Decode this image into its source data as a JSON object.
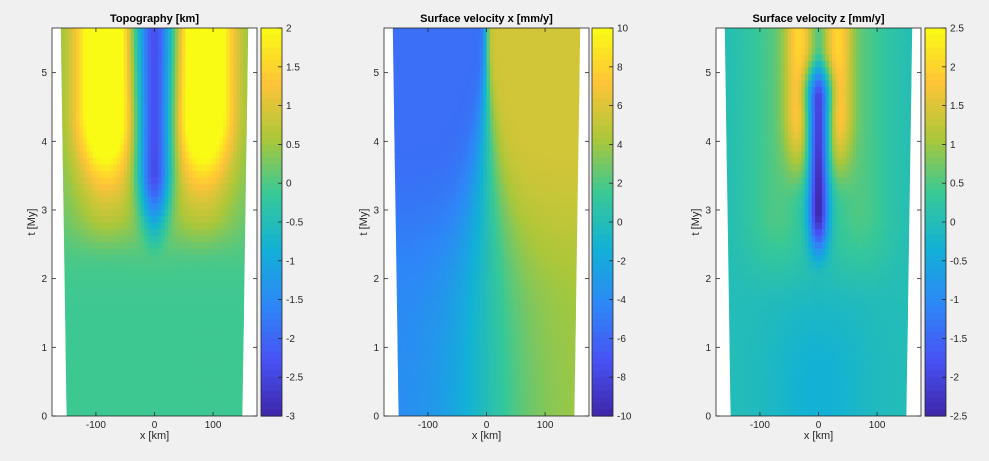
{
  "chart_data": [
    {
      "type": "heatmap",
      "title": "Topography [km]",
      "xlabel": "x [km]",
      "ylabel": "t [My]",
      "xlim": [
        -175,
        175
      ],
      "ylim": [
        0,
        5.65
      ],
      "xticks": [
        "-100",
        "0",
        "100"
      ],
      "yticks": [
        "0",
        "1",
        "2",
        "3",
        "4",
        "5"
      ],
      "colormap": "parula",
      "clim": [
        -3,
        2
      ],
      "colorbar_ticks": [
        "2",
        "1.5",
        "1",
        "0.5",
        "0",
        "-0.5",
        "-1",
        "-1.5",
        "-2",
        "-2.5",
        "-3"
      ],
      "domain_halfwidth": {
        "t0": 150,
        "t5_65": 160
      },
      "features": "deep central trough (~-3 km) narrowing upward from t~3 My; flanking highs (~2 km) at x~+/-80 km from t~4 My; near 0 km early"
    },
    {
      "type": "heatmap",
      "title": "Surface velocity x [mm/y]",
      "xlabel": "x [km]",
      "ylabel": "t [My]",
      "xlim": [
        -175,
        175
      ],
      "ylim": [
        0,
        5.65
      ],
      "xticks": [
        "-100",
        "0",
        "100"
      ],
      "yticks": [
        "0",
        "1",
        "2",
        "3",
        "4",
        "5"
      ],
      "colormap": "parula",
      "clim": [
        -10,
        10
      ],
      "colorbar_ticks": [
        "10",
        "8",
        "6",
        "4",
        "2",
        "0",
        "-2",
        "-4",
        "-6",
        "-8",
        "-10"
      ],
      "domain_halfwidth": {
        "t0": 150,
        "t5_65": 160
      },
      "features": "antisymmetric: ~-5 mm/y left of axis, ~+5 mm/y right; sharp transition at x=0 at late times"
    },
    {
      "type": "heatmap",
      "title": "Surface velocity z [mm/y]",
      "xlabel": "x [km]",
      "ylabel": "t [My]",
      "xlim": [
        -175,
        175
      ],
      "ylim": [
        0,
        5.65
      ],
      "xticks": [
        "-100",
        "0",
        "100"
      ],
      "yticks": [
        "0",
        "1",
        "2",
        "3",
        "4",
        "5"
      ],
      "colormap": "parula",
      "clim": [
        -2.5,
        2.5
      ],
      "colorbar_ticks": [
        "2.5",
        "2",
        "1.5",
        "1",
        "0.5",
        "0",
        "-0.5",
        "-1",
        "-1.5",
        "-2",
        "-2.5"
      ],
      "domain_halfwidth": {
        "t0": 150,
        "t5_65": 160
      },
      "features": "subsidence (~-2.5 mm/y) along axis between t~2.5 and 4.5 My; uplift (~+1.5 mm/y) flanking; near 0 elsewhere"
    }
  ]
}
